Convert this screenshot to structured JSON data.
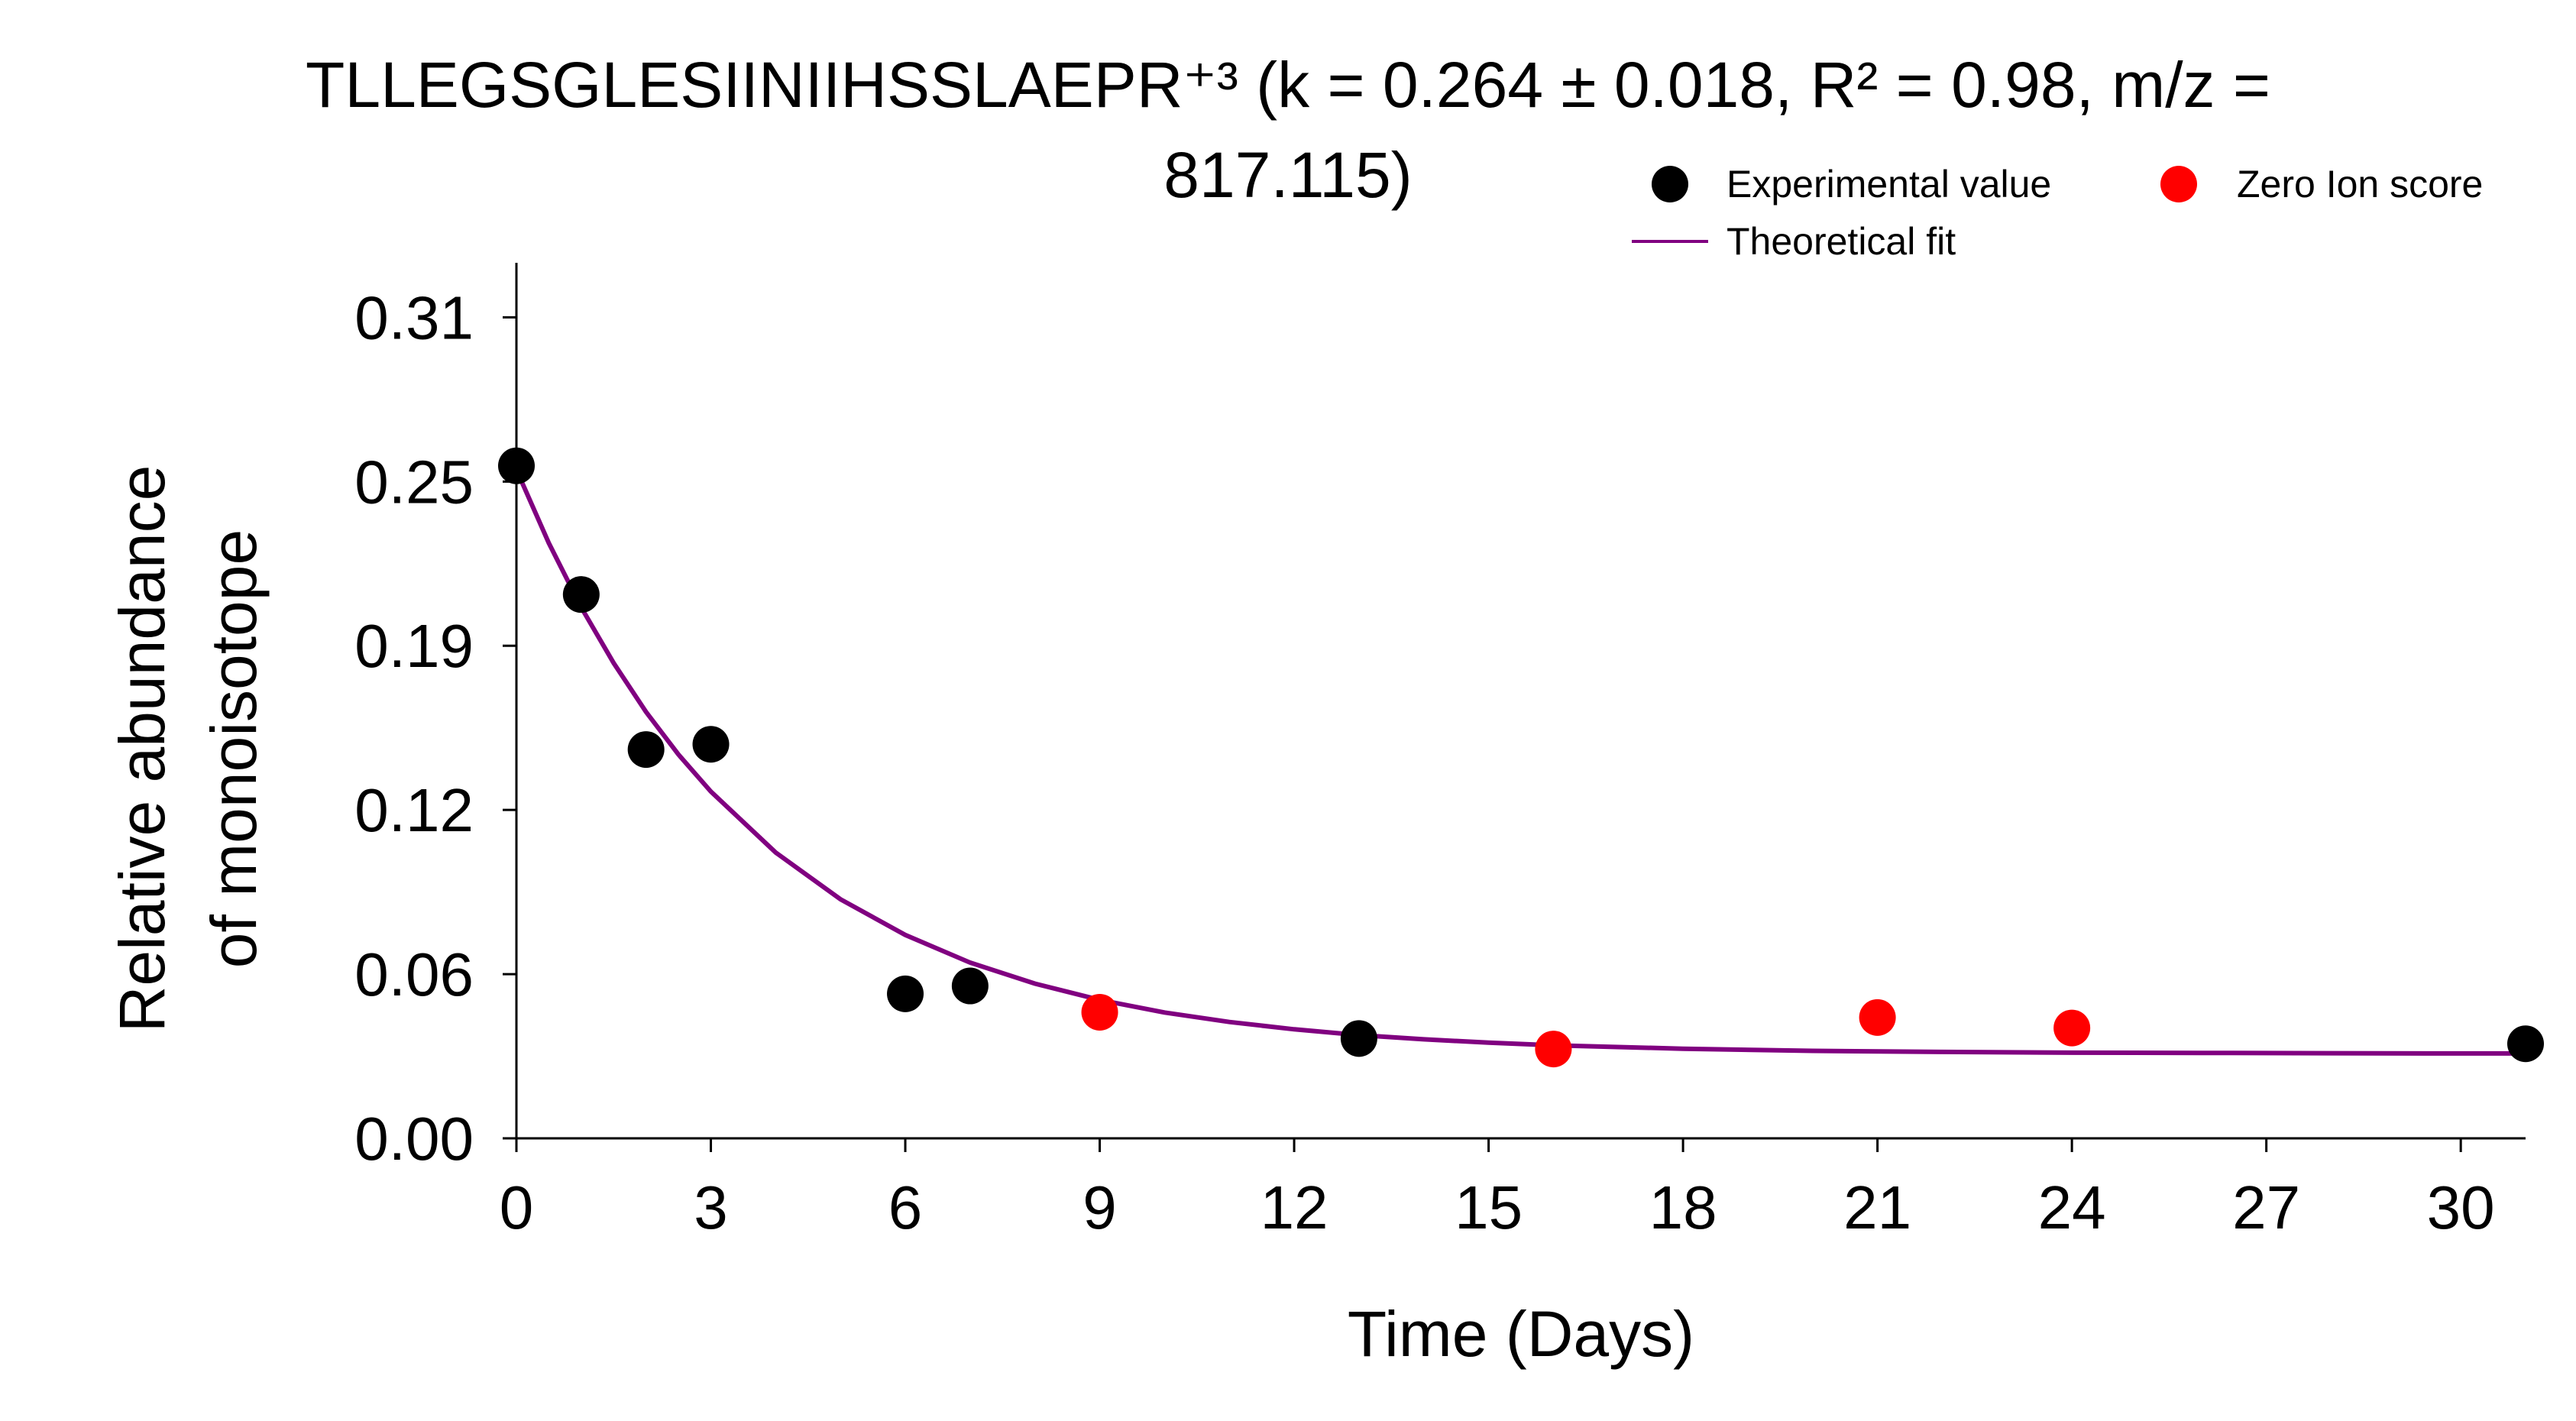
{
  "chart_data": {
    "type": "scatter",
    "title_line1": "TLLEGSGLESIINIIHSSLAEPR⁺³ (k = 0.264 ± 0.018, R² = 0.98, m/z =",
    "title_line2": "817.115)",
    "xlabel": "Time (Days)",
    "ylabel_line1": "Relative abundance",
    "ylabel_line2": "of monoisotope",
    "xlim": [
      0,
      31
    ],
    "ylim": [
      0,
      0.31
    ],
    "x_ticks": [
      0,
      3,
      6,
      9,
      12,
      15,
      18,
      21,
      24,
      27,
      30
    ],
    "x_tick_labels": [
      "0",
      "3",
      "6",
      "9",
      "12",
      "15",
      "18",
      "21",
      "24",
      "27",
      "30"
    ],
    "y_ticks": [
      0.0,
      0.0625,
      0.125,
      0.1875,
      0.25,
      0.3125
    ],
    "y_tick_labels": [
      "0.00",
      "0.06",
      "0.12",
      "0.19",
      "0.25",
      "0.31"
    ],
    "grid": false,
    "legend_position": "top-right",
    "series": [
      {
        "name": "Experimental value",
        "color": "#000000",
        "marker": "circle",
        "x": [
          0,
          1,
          2,
          3,
          6,
          7,
          13,
          31
        ],
        "y": [
          0.256,
          0.207,
          0.148,
          0.15,
          0.055,
          0.058,
          0.038,
          0.036
        ]
      },
      {
        "name": "Zero Ion score",
        "color": "#ff0000",
        "marker": "circle",
        "x": [
          9,
          16,
          21,
          24
        ],
        "y": [
          0.048,
          0.034,
          0.046,
          0.042
        ]
      },
      {
        "name": "Theoretical fit",
        "color": "#800080",
        "marker": "line",
        "x": [
          0,
          0.5,
          1,
          1.5,
          2,
          2.5,
          3,
          4,
          5,
          6,
          7,
          8,
          9,
          10,
          11,
          12,
          13,
          14,
          15,
          16,
          18,
          20,
          22,
          24,
          26,
          28,
          30,
          31
        ],
        "y": [
          0.2545,
          0.2266,
          0.2021,
          0.1809,
          0.1623,
          0.1461,
          0.132,
          0.1088,
          0.091,
          0.0774,
          0.0669,
          0.0589,
          0.0527,
          0.0479,
          0.0443,
          0.0415,
          0.0393,
          0.0377,
          0.0364,
          0.0354,
          0.0341,
          0.0333,
          0.0329,
          0.0326,
          0.0325,
          0.0324,
          0.0323,
          0.0323
        ]
      }
    ]
  }
}
